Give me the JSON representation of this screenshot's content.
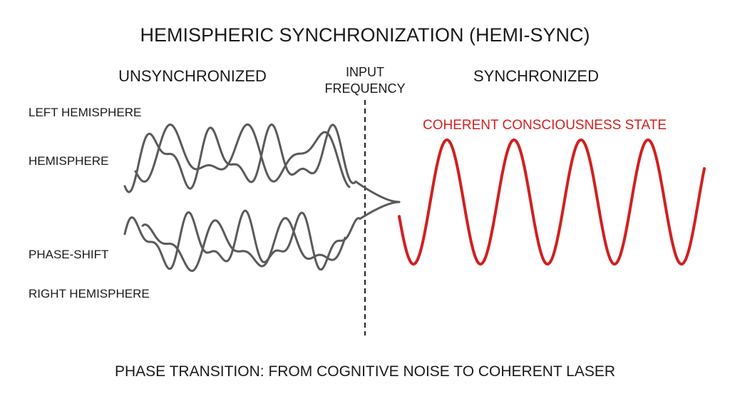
{
  "header": {
    "title": "HEMISPHERIC SYNCHRONIZATION (HEMI-SYNC)"
  },
  "sections": {
    "left": "UNSYNCHRONIZED",
    "middle": [
      "INPUT",
      "FREQUENCY"
    ],
    "right": "SYNCHRONIZED"
  },
  "labels": [
    "LEFT HEMISPHERE",
    "HEMISPHERE",
    "PHASE-SHIFT",
    "RIGHT HEMISPHERE"
  ],
  "state_label": "COHERENT CONSCIOUSNESS STATE",
  "caption": "PHASE TRANSITION: FROM COGNITIVE NOISE TO COHERENT LASER"
}
